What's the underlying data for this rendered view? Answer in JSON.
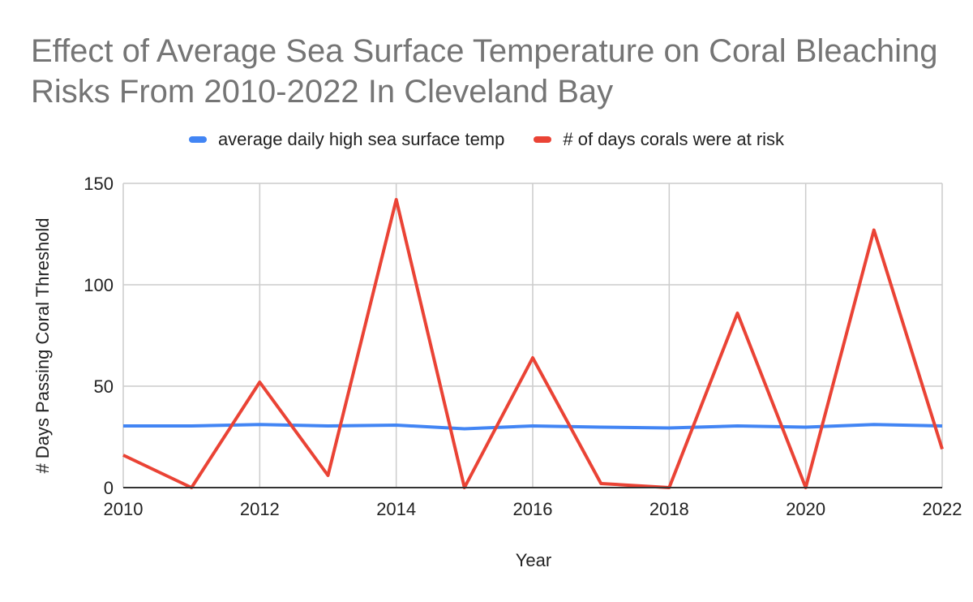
{
  "chart_data": {
    "type": "line",
    "title": "Effect of Average Sea Surface Temperature on Coral Bleaching Risks From 2010-2022 In Cleveland Bay",
    "xlabel": "Year",
    "ylabel": "# Days Passing Coral Threshold",
    "ylim": [
      0,
      150
    ],
    "yticks": [
      0,
      50,
      100,
      150
    ],
    "xlim": [
      2010,
      2022
    ],
    "xticks": [
      2010,
      2012,
      2014,
      2016,
      2018,
      2020,
      2022
    ],
    "x": [
      2010,
      2011,
      2012,
      2013,
      2014,
      2015,
      2016,
      2017,
      2018,
      2019,
      2020,
      2021,
      2022
    ],
    "grid": true,
    "legend_position": "top",
    "series": [
      {
        "name": "average daily high sea surface temp",
        "color": "#4285f4",
        "values": [
          30.4,
          30.4,
          31.1,
          30.4,
          30.8,
          29.0,
          30.4,
          29.8,
          29.4,
          30.4,
          29.8,
          31.1,
          30.4
        ]
      },
      {
        "name": "# of days corals were at risk",
        "color": "#ea4335",
        "values": [
          16,
          0,
          52,
          6,
          142,
          0,
          64,
          2,
          0,
          86,
          0,
          127,
          19
        ]
      }
    ]
  }
}
